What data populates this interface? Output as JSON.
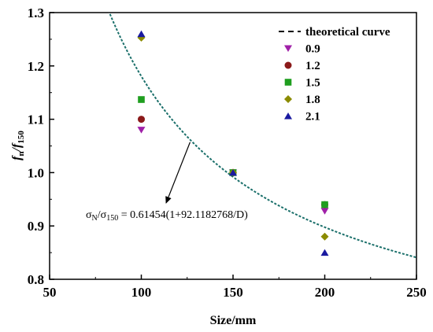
{
  "chart_data": {
    "type": "scatter",
    "xlabel": "Size/mm",
    "ylabel_main": "f",
    "ylabel_sub1": "n",
    "ylabel_slash": "/",
    "ylabel_sub2": "150",
    "xlim": [
      50,
      250
    ],
    "ylim": [
      0.8,
      1.3
    ],
    "xticks": [
      50,
      100,
      150,
      200,
      250
    ],
    "yticks": [
      0.8,
      0.9,
      1.0,
      1.1,
      1.2,
      1.3
    ],
    "xtick_labels": [
      "50",
      "100",
      "150",
      "200",
      "250"
    ],
    "ytick_labels": [
      "0.8",
      "0.9",
      "1.0",
      "1.1",
      "1.2",
      "1.3"
    ],
    "grid": false,
    "legend_position": "top-right",
    "series": [
      {
        "name": "0.9",
        "marker": "triangle-down",
        "color": "#a020a8",
        "points": [
          [
            100,
            1.08
          ],
          [
            150,
            1.0
          ],
          [
            200,
            0.928
          ]
        ]
      },
      {
        "name": "1.2",
        "marker": "circle",
        "color": "#8b1a1a",
        "points": [
          [
            100,
            1.1
          ],
          [
            150,
            1.0
          ],
          [
            200,
            0.94
          ]
        ]
      },
      {
        "name": "1.5",
        "marker": "square",
        "color": "#1f9e1f",
        "points": [
          [
            100,
            1.137
          ],
          [
            150,
            1.0
          ],
          [
            200,
            0.94
          ]
        ]
      },
      {
        "name": "1.8",
        "marker": "diamond",
        "color": "#8b8b00",
        "points": [
          [
            100,
            1.253
          ],
          [
            150,
            1.0
          ],
          [
            200,
            0.88
          ]
        ]
      },
      {
        "name": "2.1",
        "marker": "triangle-up",
        "color": "#1a1aa0",
        "points": [
          [
            100,
            1.26
          ],
          [
            150,
            1.0
          ],
          [
            200,
            0.85
          ]
        ]
      }
    ],
    "curve": {
      "name": "theoretical curve",
      "color": "#1a6f6a",
      "A": 0.61454,
      "B": 92.1182768,
      "x_range": [
        50,
        250
      ]
    },
    "annotation": {
      "sigma_n": "σ",
      "sub_n": "N",
      "slash": "/σ",
      "sub_150": "150",
      "equation": " = 0.61454(1+92.1182768/D)",
      "arrow_to": [
        127,
        1.06
      ]
    }
  }
}
